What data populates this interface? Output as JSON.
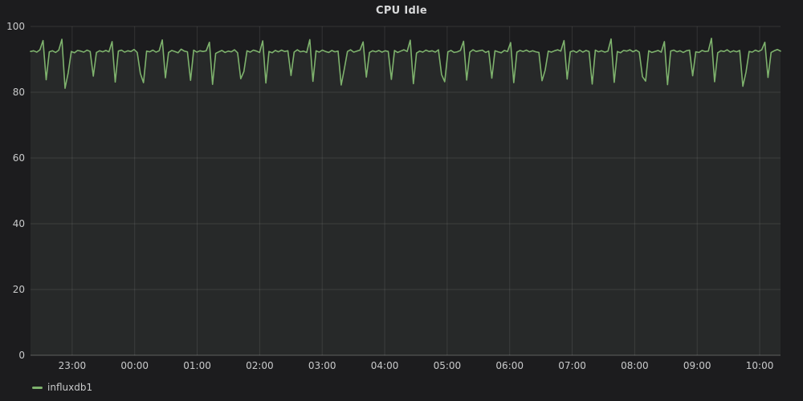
{
  "panel": {
    "title": "CPU Idle"
  },
  "legend": {
    "position": "bottom-left",
    "items": [
      {
        "label": "influxdb1",
        "color": "#7EB26D"
      }
    ]
  },
  "colors": {
    "background": "#1c1c1e",
    "grid": "rgba(255,255,255,0.10)",
    "axis_line": "rgba(255,255,255,0.20)",
    "axis_text": "#c9cacb",
    "title_text": "#d8d9da",
    "series": "#7EB26D",
    "series_fill": "rgba(150,175,150,0.09)"
  },
  "chart_data": {
    "type": "line",
    "title": "CPU Idle",
    "xlabel": "",
    "ylabel": "",
    "ylim": [
      0,
      100
    ],
    "y_ticks": [
      0,
      20,
      40,
      60,
      80,
      100
    ],
    "x_tick_labels": [
      "23:00",
      "00:00",
      "01:00",
      "02:00",
      "03:00",
      "04:00",
      "05:00",
      "06:00",
      "07:00",
      "08:00",
      "09:00",
      "10:00"
    ],
    "x_tick_minutes": [
      40,
      100,
      160,
      220,
      280,
      340,
      400,
      460,
      520,
      580,
      640,
      700
    ],
    "x_total_minutes": 720,
    "grid": true,
    "legend_position": "bottom-left",
    "series": [
      {
        "name": "influxdb1",
        "color": "#7EB26D",
        "values": [
          92.4,
          92.6,
          92.2,
          92.9,
          95.7,
          83.8,
          92.3,
          92.6,
          92.1,
          92.8,
          96.1,
          81.2,
          85.9,
          92.4,
          92.0,
          92.7,
          92.5,
          92.2,
          92.8,
          92.4,
          84.9,
          92.1,
          92.6,
          92.3,
          92.7,
          92.3,
          95.4,
          83.1,
          92.5,
          92.8,
          92.2,
          92.6,
          92.4,
          93.0,
          92.1,
          85.7,
          82.9,
          92.5,
          92.3,
          92.8,
          92.2,
          92.6,
          95.9,
          84.4,
          92.1,
          92.7,
          92.4,
          92.0,
          93.1,
          92.5,
          92.3,
          83.6,
          92.8,
          92.2,
          92.6,
          92.4,
          92.6,
          95.2,
          82.4,
          91.8,
          92.3,
          92.7,
          92.1,
          92.5,
          92.3,
          92.9,
          92.0,
          84.1,
          86.3,
          92.6,
          92.2,
          92.8,
          92.5,
          92.1,
          95.6,
          82.8,
          92.4,
          92.0,
          92.7,
          92.3,
          92.8,
          92.4,
          92.6,
          85.1,
          92.2,
          92.9,
          92.3,
          92.5,
          92.1,
          96.0,
          83.3,
          92.6,
          92.2,
          92.8,
          92.4,
          92.1,
          92.7,
          92.3,
          92.5,
          82.2,
          87.1,
          92.4,
          92.9,
          92.2,
          92.5,
          92.8,
          95.3,
          84.6,
          92.1,
          92.6,
          92.3,
          92.7,
          92.2,
          92.6,
          92.4,
          83.9,
          92.7,
          92.1,
          92.5,
          92.9,
          92.4,
          95.8,
          82.6,
          91.9,
          92.5,
          92.2,
          92.8,
          92.4,
          92.6,
          92.2,
          92.9,
          85.4,
          83.2,
          92.3,
          92.7,
          92.1,
          92.3,
          92.7,
          95.5,
          83.7,
          92.2,
          92.9,
          92.4,
          92.6,
          92.8,
          92.1,
          92.5,
          84.3,
          92.6,
          92.3,
          92.0,
          92.7,
          92.4,
          95.1,
          82.9,
          92.2,
          92.7,
          92.4,
          92.8,
          92.3,
          92.6,
          92.3,
          92.1,
          83.5,
          86.7,
          92.5,
          92.2,
          92.6,
          92.9,
          92.5,
          95.7,
          84.0,
          92.3,
          92.6,
          92.1,
          92.8,
          92.2,
          92.7,
          92.4,
          82.5,
          92.8,
          92.3,
          92.6,
          92.2,
          92.5,
          96.2,
          83.0,
          92.4,
          92.0,
          92.7,
          92.5,
          92.9,
          92.3,
          92.8,
          92.2,
          84.7,
          83.4,
          92.6,
          92.1,
          92.4,
          92.7,
          92.2,
          95.4,
          82.3,
          92.5,
          92.8,
          92.3,
          92.6,
          92.1,
          92.6,
          92.8,
          85.0,
          92.3,
          92.1,
          92.7,
          92.4,
          92.5,
          96.4,
          83.2,
          92.0,
          92.6,
          92.4,
          92.9,
          92.2,
          92.6,
          92.3,
          92.7,
          81.8,
          86.1,
          92.4,
          92.2,
          92.8,
          92.4,
          92.9,
          95.2,
          84.5,
          92.1,
          92.6,
          93.0,
          92.5
        ]
      }
    ]
  }
}
